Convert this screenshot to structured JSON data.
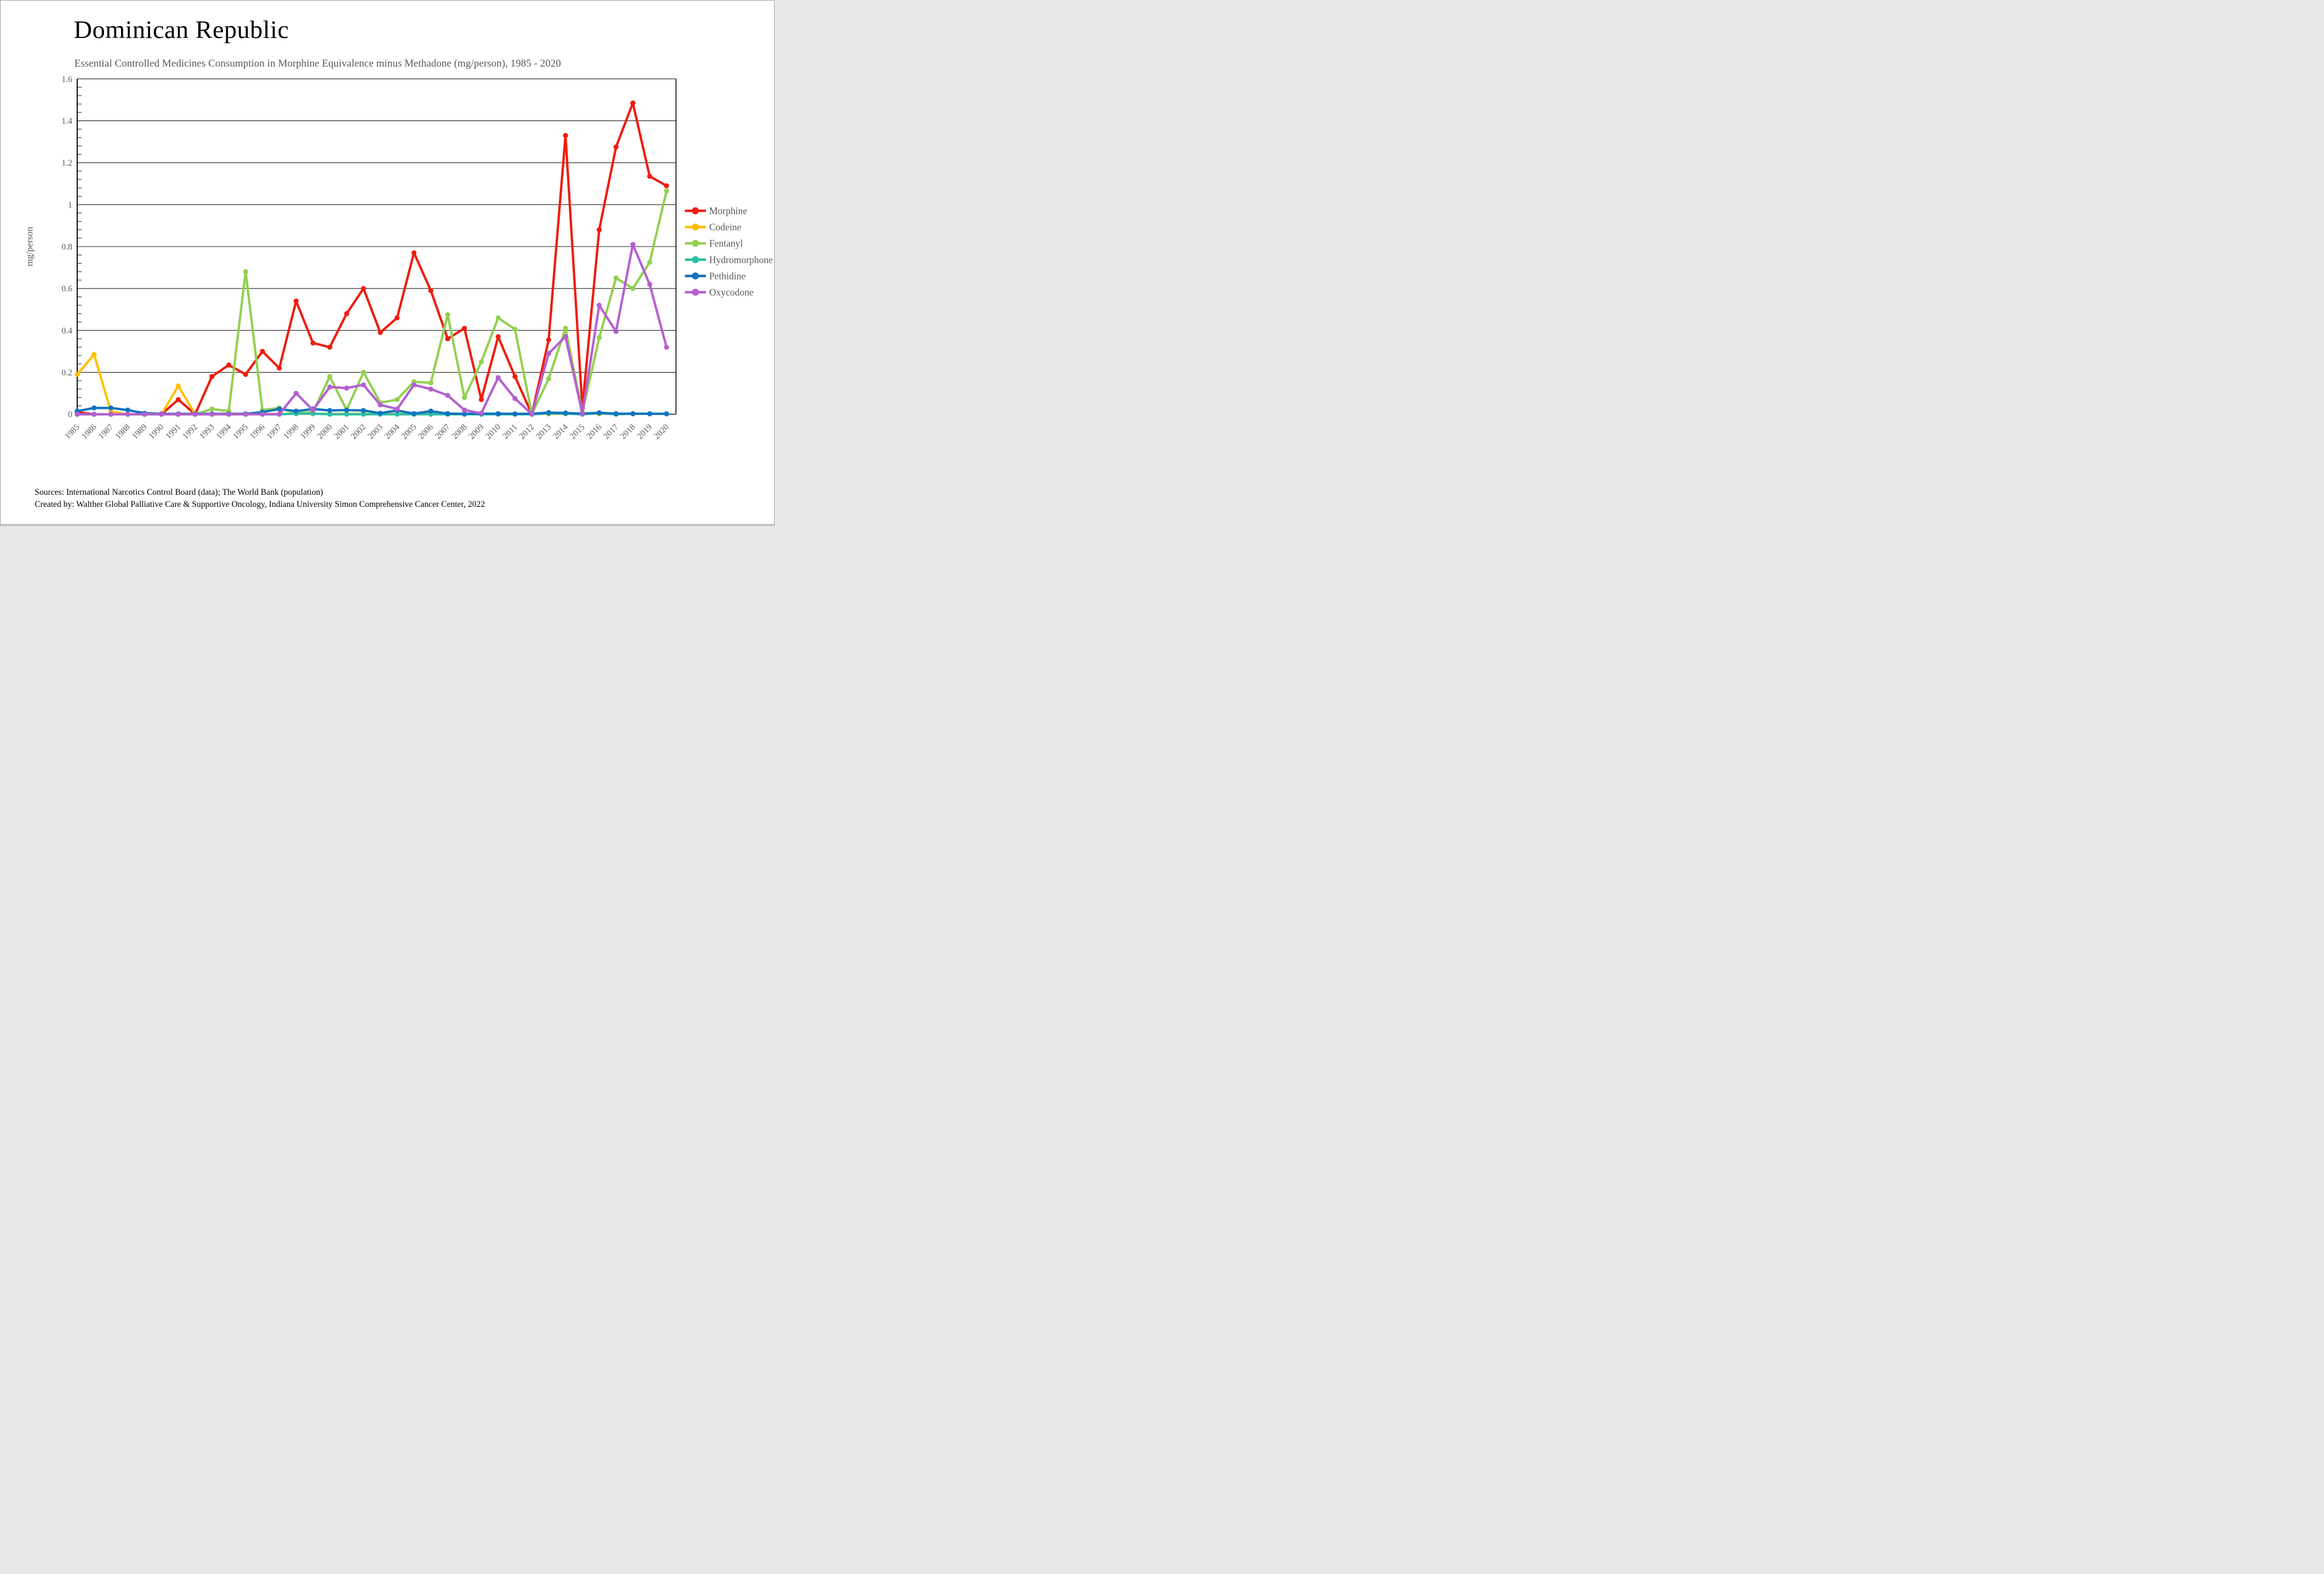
{
  "header": {
    "title": "Dominican Republic",
    "subtitle": "Essential Controlled Medicines Consumption in Morphine Equivalence minus Methadone (mg/person), 1985 - 2020"
  },
  "footer": {
    "source_line1": "Sources: International Narcotics Control Board (data); The World Bank (population)",
    "source_line2": "Created by: Walther Global Palliative Care & Supportive Oncology, Indiana University Simon Comprehensive Cancer Center, 2022"
  },
  "chart_data": {
    "type": "line",
    "title": "Dominican Republic",
    "subtitle": "Essential Controlled Medicines Consumption in Morphine Equivalence minus Methadone (mg/person), 1985 - 2020",
    "xlabel": "",
    "ylabel": "mg/person",
    "ylim": [
      0,
      1.6
    ],
    "ytick_step": 0.2,
    "ytick_labels": [
      "0",
      "0.2",
      "0.4",
      "0.6",
      "0.8",
      "1",
      "1.2",
      "1.4",
      "1.6"
    ],
    "grid": true,
    "legend_position": "right",
    "x": [
      1985,
      1986,
      1987,
      1988,
      1989,
      1990,
      1991,
      1992,
      1993,
      1994,
      1995,
      1996,
      1997,
      1998,
      1999,
      2000,
      2001,
      2002,
      2003,
      2004,
      2005,
      2006,
      2007,
      2008,
      2009,
      2010,
      2011,
      2012,
      2013,
      2014,
      2015,
      2016,
      2017,
      2018,
      2019,
      2020
    ],
    "series": [
      {
        "name": "Morphine",
        "color": "#EE1D0F",
        "values": [
          0.01,
          0,
          0,
          0,
          0,
          0,
          0.07,
          0,
          0.18,
          0.235,
          0.19,
          0.3,
          0.22,
          0.54,
          0.34,
          0.32,
          0.48,
          0.6,
          0.39,
          0.46,
          0.77,
          0.59,
          0.36,
          0.41,
          0.07,
          0.37,
          0.18,
          0,
          0.355,
          1.33,
          0.03,
          0.88,
          1.275,
          1.485,
          1.135,
          1.09
        ]
      },
      {
        "name": "Codeine",
        "color": "#FFC000",
        "values": [
          0.19,
          0.285,
          0.013,
          0,
          0,
          0,
          0.135,
          0,
          0,
          0,
          0,
          0,
          0.002,
          0.002,
          0.002,
          0.002,
          0.002,
          0.002,
          0.002,
          0.002,
          0.002,
          0.002,
          0.002,
          0.002,
          0.002,
          0.002,
          0.002,
          0.002,
          0.002,
          0.002,
          0.002,
          0.002,
          0.002,
          0.002,
          0.002,
          0.002
        ]
      },
      {
        "name": "Fentanyl",
        "color": "#92D050",
        "values": [
          0,
          0,
          0,
          0,
          0,
          0,
          0,
          0,
          0.025,
          0.015,
          0.68,
          0.02,
          0.03,
          0.005,
          0.01,
          0.18,
          0.02,
          0.2,
          0.055,
          0.07,
          0.155,
          0.15,
          0.475,
          0.08,
          0.25,
          0.46,
          0.405,
          0,
          0.17,
          0.41,
          0.01,
          0.365,
          0.65,
          0.6,
          0.725,
          1.065
        ]
      },
      {
        "name": "Hydromorphone",
        "color": "#2EBFA5",
        "values": [
          0,
          0,
          0,
          0,
          0,
          0,
          0,
          0,
          0,
          0,
          0,
          0,
          0,
          0.003,
          0.003,
          0,
          0,
          0,
          0,
          0,
          0,
          0,
          0,
          0,
          0,
          0,
          0,
          0,
          0.004,
          0.003,
          0,
          0.005,
          0,
          0.002,
          0.003,
          0.002
        ]
      },
      {
        "name": "Pethidine",
        "color": "#1273BE",
        "values": [
          0.015,
          0.03,
          0.03,
          0.02,
          0.005,
          0.002,
          0.002,
          0.002,
          0.002,
          0.002,
          0.002,
          0.01,
          0.025,
          0.015,
          0.025,
          0.018,
          0.02,
          0.018,
          0.005,
          0.018,
          0.003,
          0.015,
          0.003,
          0.002,
          0.003,
          0.003,
          0.002,
          0.002,
          0.008,
          0.006,
          0.003,
          0.007,
          0.003,
          0.003,
          0.002,
          0.002
        ]
      },
      {
        "name": "Oxycodone",
        "color": "#B55FD0",
        "values": [
          0,
          0,
          0,
          0,
          0,
          0,
          0,
          0,
          0,
          0,
          0,
          0,
          0,
          0.1,
          0.02,
          0.13,
          0.125,
          0.14,
          0.045,
          0.025,
          0.14,
          0.12,
          0.09,
          0.02,
          0.005,
          0.175,
          0.075,
          0,
          0.29,
          0.37,
          0.003,
          0.52,
          0.395,
          0.81,
          0.62,
          0.32
        ]
      }
    ]
  }
}
